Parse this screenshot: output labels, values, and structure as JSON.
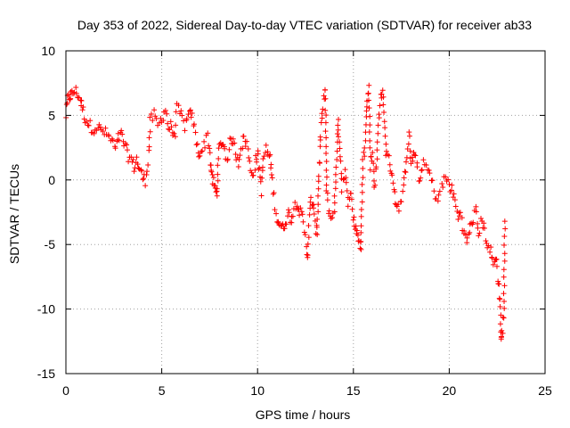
{
  "chart_data": {
    "type": "scatter",
    "title": "Day 353 of 2022, Sidereal Day-to-day VTEC variation (SDTVAR) for receiver ab33",
    "xlabel": "GPS time / hours",
    "ylabel": "SDTVAR / TECUs",
    "xlim": [
      0,
      25
    ],
    "ylim": [
      -15,
      10
    ],
    "xticks": [
      0,
      5,
      10,
      15,
      20,
      25
    ],
    "yticks": [
      -15,
      -10,
      -5,
      0,
      5,
      10
    ],
    "xtick_labels": [
      "0",
      "5",
      "10",
      "15",
      "20",
      "25"
    ],
    "ytick_labels": [
      "-15",
      "-10",
      "-5",
      "0",
      "5",
      "10"
    ],
    "grid": true,
    "marker": "+",
    "series_color": "#ff0000",
    "series": [
      {
        "name": "SDTVAR",
        "note": "approximate trace read from plotted + markers; [time_hours, tecu]",
        "trace": [
          [
            0.0,
            5.0
          ],
          [
            0.1,
            6.2
          ],
          [
            0.2,
            6.5
          ],
          [
            0.3,
            6.6
          ],
          [
            0.45,
            6.9
          ],
          [
            0.6,
            6.7
          ],
          [
            0.75,
            6.2
          ],
          [
            0.85,
            5.6
          ],
          [
            1.0,
            4.8
          ],
          [
            1.2,
            4.3
          ],
          [
            1.4,
            4.0
          ],
          [
            1.6,
            4.1
          ],
          [
            1.8,
            3.9
          ],
          [
            2.0,
            3.7
          ],
          [
            2.2,
            3.4
          ],
          [
            2.4,
            3.0
          ],
          [
            2.6,
            2.4
          ],
          [
            2.75,
            3.2
          ],
          [
            2.9,
            3.5
          ],
          [
            3.05,
            2.8
          ],
          [
            3.2,
            2.0
          ],
          [
            3.4,
            1.6
          ],
          [
            3.55,
            1.0
          ],
          [
            3.7,
            1.6
          ],
          [
            3.85,
            0.8
          ],
          [
            4.0,
            0.2
          ],
          [
            4.15,
            0.0
          ],
          [
            4.3,
            1.5
          ],
          [
            4.4,
            4.5
          ],
          [
            4.6,
            5.0
          ],
          [
            4.8,
            4.2
          ],
          [
            5.0,
            4.8
          ],
          [
            5.2,
            5.5
          ],
          [
            5.35,
            4.0
          ],
          [
            5.5,
            4.2
          ],
          [
            5.65,
            3.2
          ],
          [
            5.8,
            5.5
          ],
          [
            6.0,
            5.0
          ],
          [
            6.2,
            4.2
          ],
          [
            6.4,
            4.8
          ],
          [
            6.55,
            5.2
          ],
          [
            6.7,
            4.0
          ],
          [
            6.85,
            2.5
          ],
          [
            7.0,
            2.0
          ],
          [
            7.2,
            2.6
          ],
          [
            7.4,
            3.5
          ],
          [
            7.55,
            1.5
          ],
          [
            7.6,
            0.3
          ],
          [
            7.7,
            -0.2
          ],
          [
            7.8,
            -0.8
          ],
          [
            7.9,
            -1.2
          ],
          [
            7.95,
            2.2
          ],
          [
            8.1,
            3.0
          ],
          [
            8.25,
            2.6
          ],
          [
            8.4,
            1.6
          ],
          [
            8.55,
            2.8
          ],
          [
            8.7,
            3.2
          ],
          [
            8.85,
            2.2
          ],
          [
            9.0,
            1.4
          ],
          [
            9.15,
            2.6
          ],
          [
            9.3,
            3.2
          ],
          [
            9.45,
            2.8
          ],
          [
            9.6,
            1.2
          ],
          [
            9.75,
            0.4
          ],
          [
            9.9,
            1.5
          ],
          [
            10.0,
            2.0
          ],
          [
            10.1,
            0.8
          ],
          [
            10.2,
            -0.8
          ],
          [
            10.3,
            1.6
          ],
          [
            10.45,
            2.4
          ],
          [
            10.6,
            1.8
          ],
          [
            10.7,
            1.0
          ],
          [
            11.0,
            -3.0
          ],
          [
            11.15,
            -3.4
          ],
          [
            11.3,
            -3.8
          ],
          [
            11.45,
            -3.2
          ],
          [
            11.6,
            -2.6
          ],
          [
            11.75,
            -3.0
          ],
          [
            11.9,
            -2.2
          ],
          [
            12.05,
            -1.6
          ],
          [
            12.2,
            -2.4
          ],
          [
            12.35,
            -3.0
          ],
          [
            12.5,
            -4.5
          ],
          [
            12.6,
            -6.0
          ],
          [
            12.7,
            -3.0
          ],
          [
            12.8,
            -1.5
          ],
          [
            12.9,
            -2.0
          ],
          [
            13.0,
            -3.5
          ],
          [
            13.1,
            -4.2
          ],
          [
            13.2,
            0.5
          ],
          [
            13.3,
            3.5
          ],
          [
            13.4,
            5.5
          ],
          [
            13.5,
            7.3
          ],
          [
            13.55,
            5.0
          ],
          [
            13.6,
            -1.0
          ],
          [
            13.7,
            -2.2
          ],
          [
            13.85,
            -3.0
          ],
          [
            14.0,
            -2.4
          ],
          [
            14.1,
            1.0
          ],
          [
            14.2,
            4.8
          ],
          [
            14.3,
            2.0
          ],
          [
            14.4,
            -0.5
          ],
          [
            14.55,
            0.5
          ],
          [
            14.7,
            -1.6
          ],
          [
            14.85,
            -0.8
          ],
          [
            15.0,
            -2.8
          ],
          [
            15.1,
            -3.6
          ],
          [
            15.2,
            -4.0
          ],
          [
            15.3,
            -4.8
          ],
          [
            15.4,
            -5.4
          ],
          [
            15.5,
            1.5
          ],
          [
            15.6,
            2.5
          ],
          [
            15.7,
            6.0
          ],
          [
            15.8,
            7.4
          ],
          [
            15.9,
            1.2
          ],
          [
            16.0,
            2.0
          ],
          [
            16.1,
            -0.5
          ],
          [
            16.2,
            1.0
          ],
          [
            16.35,
            5.5
          ],
          [
            16.45,
            6.8
          ],
          [
            16.55,
            6.4
          ],
          [
            16.7,
            2.2
          ],
          [
            16.85,
            1.5
          ],
          [
            17.0,
            0.8
          ],
          [
            17.15,
            -1.0
          ],
          [
            17.3,
            -2.4
          ],
          [
            17.45,
            -1.8
          ],
          [
            17.6,
            -0.8
          ],
          [
            17.75,
            1.6
          ],
          [
            17.9,
            3.6
          ],
          [
            18.0,
            1.2
          ],
          [
            18.15,
            2.0
          ],
          [
            18.3,
            1.2
          ],
          [
            18.45,
            -0.2
          ],
          [
            18.6,
            1.2
          ],
          [
            18.8,
            1.0
          ],
          [
            19.0,
            0.4
          ],
          [
            19.2,
            -0.8
          ],
          [
            19.4,
            -1.6
          ],
          [
            19.6,
            -0.6
          ],
          [
            19.8,
            0.2
          ],
          [
            20.0,
            -0.4
          ],
          [
            20.15,
            -0.8
          ],
          [
            20.3,
            -1.6
          ],
          [
            20.45,
            -3.0
          ],
          [
            20.6,
            -2.4
          ],
          [
            20.75,
            -4.0
          ],
          [
            20.9,
            -4.8
          ],
          [
            21.05,
            -4.0
          ],
          [
            21.2,
            -3.2
          ],
          [
            21.4,
            -2.4
          ],
          [
            21.55,
            -4.2
          ],
          [
            21.7,
            -3.0
          ],
          [
            21.85,
            -4.0
          ],
          [
            22.0,
            -5.0
          ],
          [
            22.15,
            -5.6
          ],
          [
            22.3,
            -6.6
          ],
          [
            22.45,
            -5.8
          ],
          [
            22.55,
            -8.0
          ],
          [
            22.65,
            -9.2
          ],
          [
            22.7,
            -12.4
          ],
          [
            22.75,
            -12.0
          ],
          [
            22.85,
            -10.0
          ],
          [
            22.9,
            -3.2
          ]
        ]
      }
    ]
  }
}
